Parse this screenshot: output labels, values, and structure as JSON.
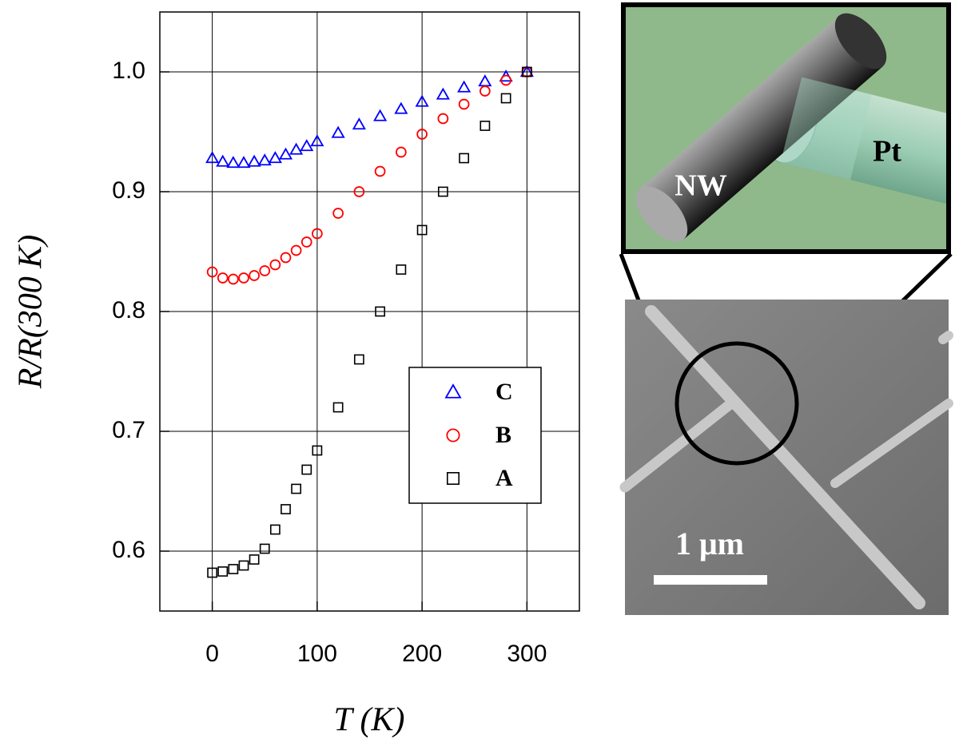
{
  "chart_data": {
    "type": "scatter",
    "xlabel": "T (K)",
    "ylabel": "R/R(300 K)",
    "x": [
      0,
      10,
      20,
      30,
      40,
      50,
      60,
      70,
      80,
      90,
      100,
      120,
      140,
      160,
      180,
      200,
      220,
      240,
      260,
      280,
      300
    ],
    "series": [
      {
        "name": "C",
        "color": "#0000ff",
        "marker": "triangle",
        "values": [
          0.928,
          0.925,
          0.924,
          0.924,
          0.925,
          0.926,
          0.928,
          0.931,
          0.935,
          0.938,
          0.942,
          0.949,
          0.956,
          0.963,
          0.969,
          0.975,
          0.981,
          0.987,
          0.992,
          0.996,
          1.0
        ]
      },
      {
        "name": "B",
        "color": "#ff0000",
        "marker": "circle",
        "values": [
          0.833,
          0.828,
          0.827,
          0.828,
          0.83,
          0.834,
          0.839,
          0.845,
          0.851,
          0.858,
          0.865,
          0.882,
          0.9,
          0.917,
          0.933,
          0.948,
          0.961,
          0.973,
          0.984,
          0.993,
          1.0
        ]
      },
      {
        "name": "A",
        "color": "#000000",
        "marker": "square",
        "values": [
          0.582,
          0.583,
          0.585,
          0.588,
          0.593,
          0.602,
          0.618,
          0.635,
          0.652,
          0.668,
          0.684,
          0.72,
          0.76,
          0.8,
          0.835,
          0.868,
          0.9,
          0.928,
          0.955,
          0.978,
          1.0
        ]
      }
    ],
    "xlim": [
      -50,
      350
    ],
    "xticks": [
      0,
      100,
      200,
      300
    ],
    "ylim": [
      0.55,
      1.05
    ],
    "yticks": [
      0.6,
      0.7,
      0.8,
      0.9,
      {
        "value": 1,
        "label": "1.0"
      }
    ],
    "grid": true,
    "legend": "center right"
  },
  "inset": {
    "nw_label": "NW",
    "pt_label": "Pt",
    "scale_bar": "1 μm"
  }
}
